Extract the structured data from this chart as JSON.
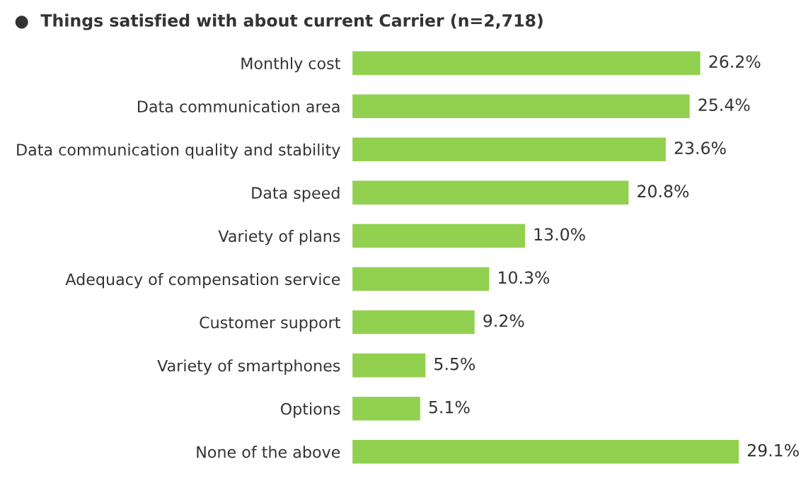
{
  "chart_data": {
    "type": "bar",
    "orientation": "horizontal",
    "title": "●  Things satisfied with about current Carrier (n=2,718)",
    "categories": [
      "Monthly cost",
      "Data communication area",
      "Data communication quality and stability",
      "Data speed",
      "Variety of plans",
      "Adequacy of compensation service",
      "Customer support",
      "Variety of smartphones",
      "Options",
      "None of the above"
    ],
    "values": [
      26.2,
      25.4,
      23.6,
      20.8,
      13.0,
      10.3,
      9.2,
      5.5,
      5.1,
      29.1
    ],
    "value_labels": [
      "26.2%",
      "25.4%",
      "23.6%",
      "20.8%",
      "13.0%",
      "10.3%",
      "9.2%",
      "5.5%",
      "5.1%",
      "29.1%"
    ],
    "color": "#92d050",
    "grid": false,
    "legend": false
  }
}
